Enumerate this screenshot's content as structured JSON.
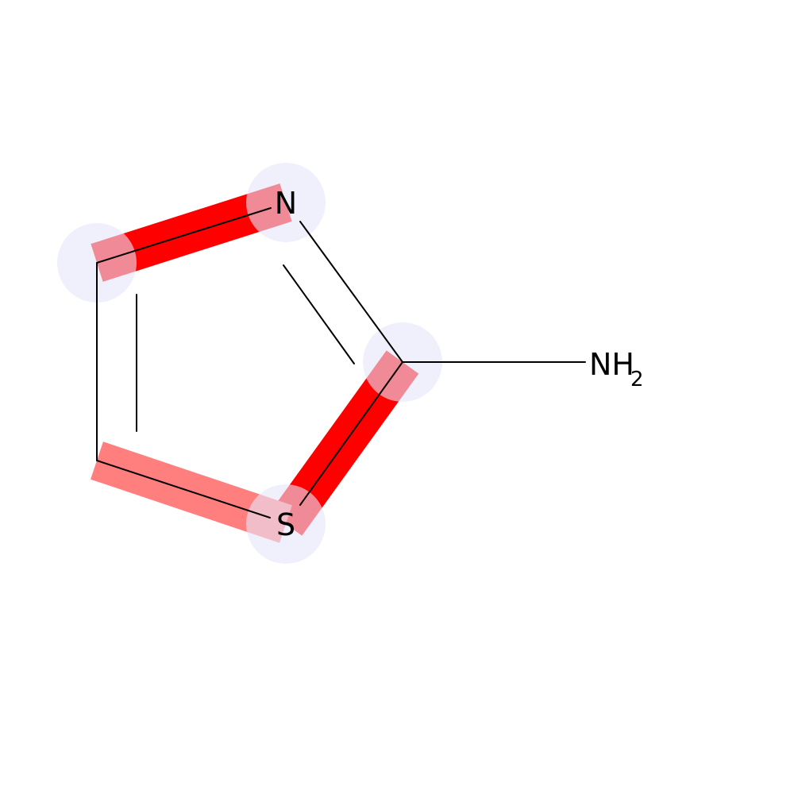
{
  "molecule": {
    "atoms": {
      "n_ring": {
        "symbol": "N"
      },
      "s_ring": {
        "symbol": "S"
      },
      "amine": {
        "symbol": "NH",
        "subscript": "2"
      }
    },
    "highlights": {
      "atom_circle_color": "#e6e6fa",
      "atom_circle_opacity": 0.6,
      "bond_strong_color": "#ff0000",
      "bond_weak_color": "#ff7f7f",
      "bond_c4_n3": {
        "color": "#ff0000",
        "level": 1.0
      },
      "bond_c2_s1": {
        "color": "#ff0000",
        "level": 1.0
      },
      "bond_c5_s1": {
        "color": "#ff7f7f",
        "level": 0.5
      }
    }
  }
}
